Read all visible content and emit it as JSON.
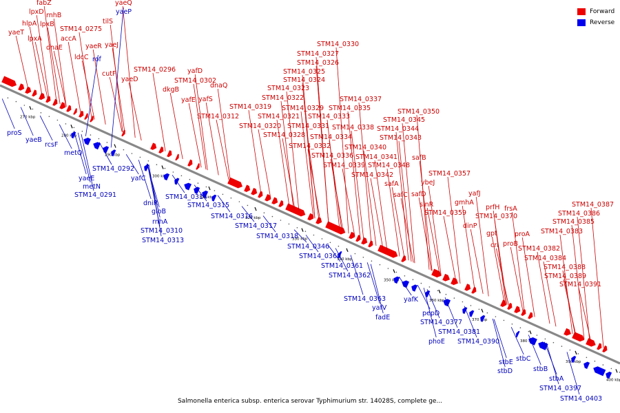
{
  "title": "Salmonella enterica subsp. enterica serovar Typhimurium str. 14028S, complete ge...",
  "legend": {
    "forward": "Forward",
    "reverse": "Reverse"
  },
  "colors": {
    "forward": "#ee0000",
    "reverse": "#0000ee",
    "axis": "#888888",
    "label_forward": "#cc0000",
    "label_reverse": "#0000bb"
  },
  "ticks": [
    "270 kbp",
    "280 kbp",
    "290 kbp",
    "300 kbp",
    "310 kbp",
    "320 kbp",
    "330 kbp",
    "340 kbp",
    "350 kbp",
    "360 kbp",
    "370 kbp",
    "380 kbp",
    "390 kbp",
    "400 kbp"
  ],
  "forward_labels": [
    "fabZ",
    "lpxD",
    "rnhB",
    "hlpA",
    "lpxB",
    "yaeT",
    "lpxA",
    "STM14_0275",
    "accA",
    "dnaE",
    "yaeR",
    "ldcC",
    "yaeJ",
    "cutF",
    "yaeQ",
    "tilS",
    "STM14_0296",
    "yaeD",
    "yafD",
    "STM14_0302",
    "dkgB",
    "dnaQ",
    "yafE",
    "yafS",
    "STM14_0312",
    "STM14_0330",
    "STM14_0327",
    "STM14_0326",
    "STM14_0325",
    "STM14_0324",
    "STM14_0323",
    "STM14_0322",
    "STM14_0319",
    "STM14_0321",
    "STM14_0320",
    "STM14_0329",
    "STM14_0333",
    "STM14_0331",
    "STM14_0328",
    "STM14_0332",
    "STM14_0337",
    "STM14_0335",
    "STM14_0338",
    "STM14_0334",
    "STM14_0336",
    "STM14_0339",
    "STM14_0350",
    "STM14_0345",
    "STM14_0344",
    "STM14_0343",
    "STM14_0340",
    "STM14_0341",
    "STM14_0348",
    "STM14_0342",
    "safB",
    "safA",
    "safC",
    "safD",
    "ybeJ",
    "STM14_0357",
    "sinR",
    "STM14_0359",
    "gmhA",
    "yafJ",
    "dinP",
    "prfH",
    "frsA",
    "STM14_0370",
    "gpt",
    "crl",
    "proA",
    "proB",
    "STM14_0387",
    "STM14_0386",
    "STM14_0385",
    "STM14_0383",
    "STM14_0382",
    "STM14_0384",
    "STM14_0388",
    "STM14_0389",
    "STM14_0391"
  ],
  "reverse_labels": [
    "yaeP",
    "rof",
    "proS",
    "yaeB",
    "rcsF",
    "metQ",
    "STM14_0292",
    "yafC",
    "yaeE",
    "metN",
    "STM14_0291",
    "dniR",
    "gloB",
    "STM14_0314",
    "STM14_0315",
    "rnhA",
    "STM14_0316",
    "STM14_0310",
    "STM14_0313",
    "STM14_0317",
    "STM14_0318",
    "STM14_0346",
    "STM14_0360",
    "STM14_0361",
    "STM14_0362",
    "STM14_0363",
    "yafV",
    "yafK",
    "fadE",
    "pepD",
    "STM14_0377",
    "STM14_0381",
    "phoE",
    "STM14_0390",
    "stbE",
    "stbC",
    "stbD",
    "stbB",
    "stbA",
    "STM14_0397",
    "STM14_0403"
  ]
}
